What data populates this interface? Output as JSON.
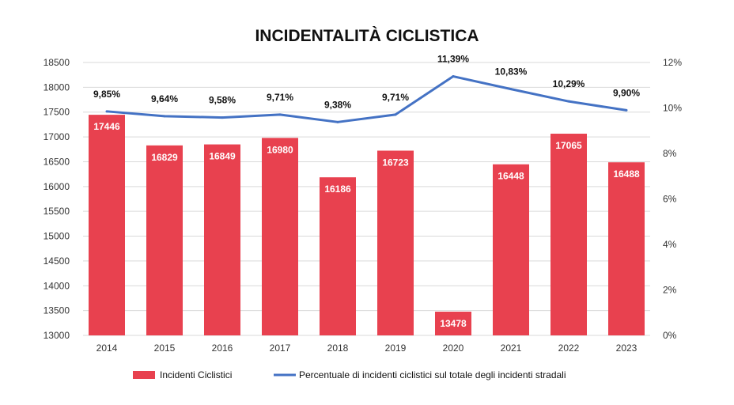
{
  "chart_data": {
    "type": "bar+line",
    "title": "INCIDENTALITÀ CICLISTICA",
    "categories": [
      "2014",
      "2015",
      "2016",
      "2017",
      "2018",
      "2019",
      "2020",
      "2021",
      "2022",
      "2023"
    ],
    "series": [
      {
        "name": "Incidenti Ciclistici",
        "type": "bar",
        "axis": "left",
        "color": "#E8414F",
        "values": [
          17446,
          16829,
          16849,
          16980,
          16186,
          16723,
          13478,
          16448,
          17065,
          16488
        ],
        "labels": [
          "17446",
          "16829",
          "16849",
          "16980",
          "16186",
          "16723",
          "13478",
          "16448",
          "17065",
          "16488"
        ]
      },
      {
        "name": "Percentuale di incidenti ciclistici sul totale degli incidenti stradali",
        "type": "line",
        "axis": "right",
        "color": "#4472C4",
        "values": [
          9.85,
          9.64,
          9.58,
          9.71,
          9.38,
          9.71,
          11.39,
          10.83,
          10.29,
          9.9
        ],
        "labels": [
          "9,85%",
          "9,64%",
          "9,58%",
          "9,71%",
          "9,38%",
          "9,71%",
          "11,39%",
          "10,83%",
          "10,29%",
          "9,90%"
        ]
      }
    ],
    "y_left": {
      "range": [
        13000,
        18500
      ],
      "ticks": [
        "13000",
        "13500",
        "14000",
        "14500",
        "15000",
        "15500",
        "16000",
        "16500",
        "17000",
        "17500",
        "18000",
        "18500"
      ]
    },
    "y_right": {
      "range": [
        0,
        12
      ],
      "ticks": [
        "0%",
        "2%",
        "4%",
        "6%",
        "8%",
        "10%",
        "12%"
      ]
    },
    "grid": true,
    "legend": "bottom"
  }
}
